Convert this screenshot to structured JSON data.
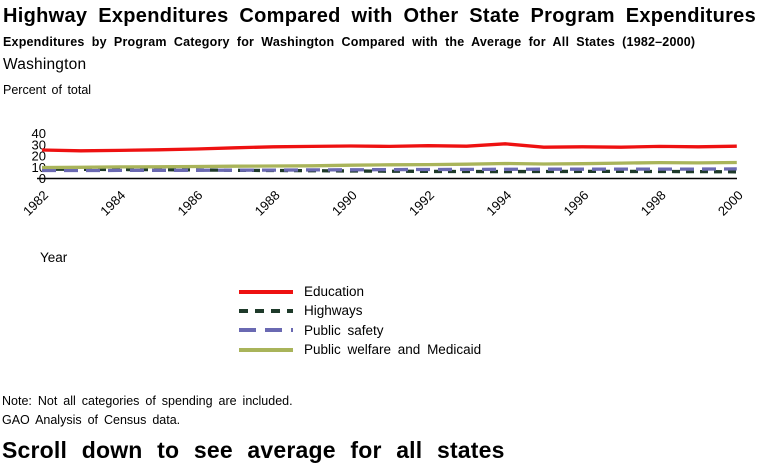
{
  "header": {
    "title": "Highway Expenditures Compared with Other State Program Expenditures",
    "subtitle": "Expenditures by Program Category for Washington Compared with the Average for All States (1982–2000)",
    "state_label": "Washington",
    "axis_unit_label": "Percent of total"
  },
  "chart_data": {
    "type": "line",
    "title": "Washington",
    "xlabel": "Year",
    "ylabel": "Percent of total",
    "ylim": [
      0,
      40
    ],
    "y_ticks": [
      0,
      10,
      20,
      30,
      40
    ],
    "x_ticks": [
      1982,
      1984,
      1986,
      1988,
      1990,
      1992,
      1994,
      1996,
      1998,
      2000
    ],
    "x": [
      1982,
      1983,
      1984,
      1985,
      1986,
      1987,
      1988,
      1989,
      1990,
      1991,
      1992,
      1993,
      1994,
      1995,
      1996,
      1997,
      1998,
      1999,
      2000
    ],
    "grid": false,
    "legend_position": "below-center",
    "series": [
      {
        "name": "Education",
        "color": "#ee1111",
        "style": "solid",
        "values": [
          25.3,
          24.6,
          25.0,
          25.5,
          26.2,
          27.3,
          28.2,
          28.5,
          28.9,
          28.5,
          29.2,
          28.7,
          30.8,
          27.8,
          28.2,
          27.8,
          28.5,
          28.2,
          28.7
        ]
      },
      {
        "name": "Highways",
        "color": "#1e3a2a",
        "style": "dashed-short",
        "values": [
          8.4,
          8.2,
          8.0,
          7.8,
          7.6,
          7.3,
          7.1,
          6.9,
          6.7,
          6.5,
          6.3,
          6.2,
          6.1,
          6.2,
          6.3,
          6.3,
          6.2,
          6.1,
          6.0
        ]
      },
      {
        "name": "Public safety",
        "color": "#6a69b2",
        "style": "dashed-long",
        "values": [
          7.1,
          7.1,
          7.2,
          7.3,
          7.3,
          7.4,
          7.5,
          7.6,
          7.7,
          7.9,
          8.0,
          8.1,
          8.2,
          8.3,
          8.3,
          8.4,
          8.4,
          8.4,
          8.5
        ]
      },
      {
        "name": "Public welfare and Medicaid",
        "color": "#a9b45a",
        "style": "solid",
        "values": [
          9.8,
          10.0,
          10.3,
          10.4,
          10.7,
          10.9,
          11.1,
          11.3,
          11.8,
          12.2,
          12.4,
          12.7,
          13.3,
          12.9,
          13.2,
          13.7,
          14.1,
          13.9,
          14.2
        ]
      }
    ]
  },
  "notes": {
    "note": "Note: Not all categories of spending are included.",
    "source": "GAO Analysis of Census data."
  },
  "footer": {
    "heading": "Scroll down to see average for all states"
  }
}
